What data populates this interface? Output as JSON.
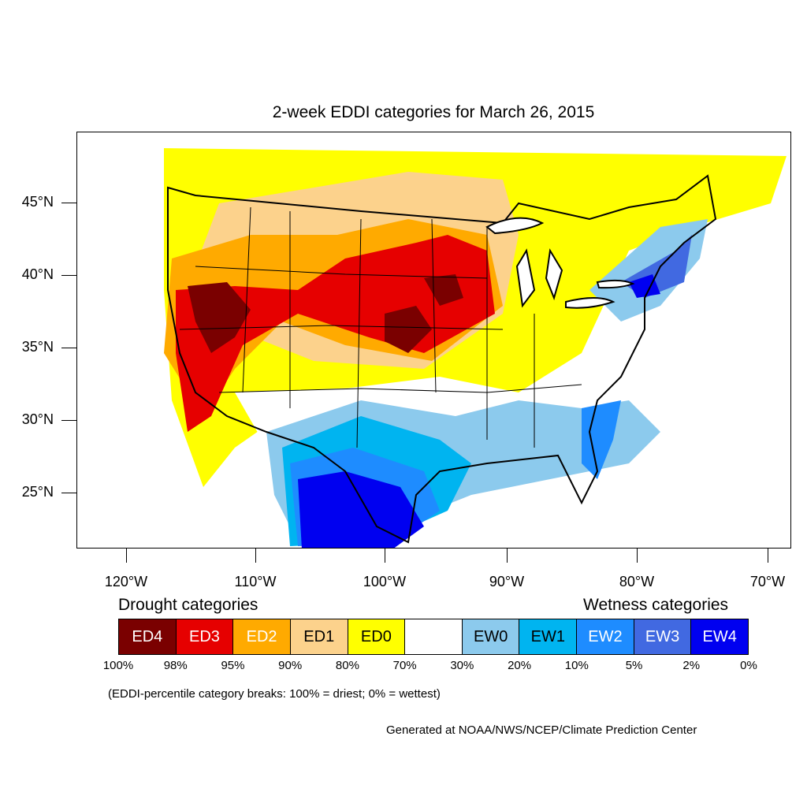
{
  "title": "2-week EDDI categories for March 26, 2015",
  "lat_labels": [
    "45°N",
    "40°N",
    "35°N",
    "30°N",
    "25°N"
  ],
  "lon_labels": [
    "120°W",
    "110°W",
    "100°W",
    "90°W",
    "80°W",
    "70°W"
  ],
  "legend": {
    "drought_heading": "Drought categories",
    "wetness_heading": "Wetness categories",
    "categories": [
      {
        "label": "ED4",
        "color": "#7a0000",
        "text_color": "#ffffff"
      },
      {
        "label": "ED3",
        "color": "#e60000",
        "text_color": "#ffffff"
      },
      {
        "label": "ED2",
        "color": "#ffaa00",
        "text_color": "#ffffff"
      },
      {
        "label": "ED1",
        "color": "#fcd28c",
        "text_color": "#000000"
      },
      {
        "label": "ED0",
        "color": "#ffff00",
        "text_color": "#000000"
      },
      {
        "label": "",
        "color": "#ffffff",
        "text_color": "#000000"
      },
      {
        "label": "EW0",
        "color": "#8ccaed",
        "text_color": "#000000"
      },
      {
        "label": "EW1",
        "color": "#00b4f0",
        "text_color": "#000000"
      },
      {
        "label": "EW2",
        "color": "#1e8cff",
        "text_color": "#ffffff"
      },
      {
        "label": "EW3",
        "color": "#4169e1",
        "text_color": "#ffffff"
      },
      {
        "label": "EW4",
        "color": "#0000f0",
        "text_color": "#ffffff"
      }
    ],
    "percentiles": [
      "100%",
      "98%",
      "95%",
      "90%",
      "80%",
      "70%",
      "30%",
      "20%",
      "10%",
      "5%",
      "2%",
      "0%"
    ]
  },
  "note": "(EDDI-percentile category breaks: 100% = driest; 0% = wettest)",
  "credit": "Generated at NOAA/NWS/NCEP/Climate Prediction Center"
}
